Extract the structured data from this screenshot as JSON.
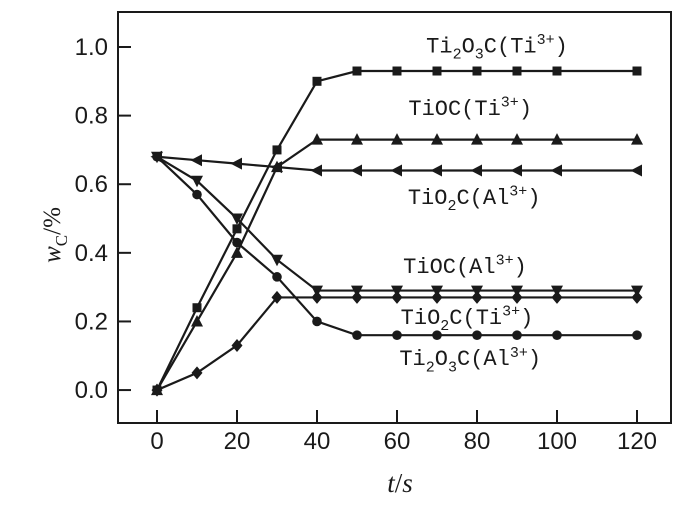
{
  "figure": {
    "background": "#ffffff",
    "ink_color": "#1a1a1a"
  },
  "chart_data": {
    "type": "line",
    "title": "",
    "xlabel": {
      "text": "t/s",
      "segments": [
        {
          "t": "t",
          "s": "it"
        },
        {
          "t": "/",
          "s": "n"
        },
        {
          "t": "s",
          "s": "it"
        }
      ]
    },
    "ylabel": {
      "text": "wC/%",
      "segments": [
        {
          "t": "w",
          "s": "it"
        },
        {
          "t": "C",
          "s": "sub"
        },
        {
          "t": "/%",
          "s": "n"
        }
      ]
    },
    "x": [
      0,
      10,
      20,
      30,
      40,
      50,
      60,
      70,
      80,
      90,
      100,
      120
    ],
    "xlim": [
      -9.75,
      128.5
    ],
    "ylim": [
      -0.096,
      1.102
    ],
    "xticks": {
      "values": [
        0,
        20,
        40,
        60,
        80,
        100,
        120
      ],
      "labels": [
        "0",
        "20",
        "40",
        "60",
        "80",
        "100",
        "120"
      ]
    },
    "yticks": {
      "values": [
        0.0,
        0.2,
        0.4,
        0.6,
        0.8,
        1.0
      ],
      "labels": [
        "0.0",
        "0.2",
        "0.4",
        "0.6",
        "0.8",
        "1.0"
      ]
    },
    "grid": false,
    "legend_position": "inline-labels",
    "line_color": "#1a1a1a",
    "series": [
      {
        "label": "Ti₂O₃C(Ti³⁺)",
        "marker": "square",
        "values": [
          0.0,
          0.24,
          0.47,
          0.7,
          0.9,
          0.93,
          0.93,
          0.93,
          0.93,
          0.93,
          0.93,
          0.93
        ],
        "label_pos": {
          "x": 85,
          "y": 1.005
        },
        "label_segments": [
          {
            "t": "Ti",
            "s": "n"
          },
          {
            "t": "2",
            "s": "sub"
          },
          {
            "t": "O",
            "s": "n"
          },
          {
            "t": "3",
            "s": "sub"
          },
          {
            "t": "C(Ti",
            "s": "n"
          },
          {
            "t": "3+",
            "s": "sup"
          },
          {
            "t": ")",
            "s": "n"
          }
        ]
      },
      {
        "label": "TiOC(Ti³⁺)",
        "marker": "triangle-up",
        "values": [
          0.0,
          0.2,
          0.4,
          0.65,
          0.73,
          0.73,
          0.73,
          0.73,
          0.73,
          0.73,
          0.73,
          0.73
        ],
        "label_pos": {
          "x": 78.3,
          "y": 0.822
        },
        "label_segments": [
          {
            "t": "TiOC(Ti",
            "s": "n"
          },
          {
            "t": "3+",
            "s": "sup"
          },
          {
            "t": ")",
            "s": "n"
          }
        ]
      },
      {
        "label": "TiO₂C(Al³⁺)",
        "marker": "triangle-left",
        "values": [
          0.68,
          0.67,
          0.66,
          0.65,
          0.64,
          0.64,
          0.64,
          0.64,
          0.64,
          0.64,
          0.64,
          0.64
        ],
        "label_pos": {
          "x": 79.3,
          "y": 0.563
        },
        "label_segments": [
          {
            "t": "TiO",
            "s": "n"
          },
          {
            "t": "2",
            "s": "sub"
          },
          {
            "t": "C(Al",
            "s": "n"
          },
          {
            "t": "3+",
            "s": "sup"
          },
          {
            "t": ")",
            "s": "n"
          }
        ]
      },
      {
        "label": "TiOC(Al³⁺)",
        "marker": "triangle-down",
        "values": [
          0.68,
          0.61,
          0.5,
          0.38,
          0.29,
          0.29,
          0.29,
          0.29,
          0.29,
          0.29,
          0.29,
          0.29
        ],
        "label_pos": {
          "x": 77,
          "y": 0.362
        },
        "label_segments": [
          {
            "t": "TiOC(Al",
            "s": "n"
          },
          {
            "t": "3+",
            "s": "sup"
          },
          {
            "t": ")",
            "s": "n"
          }
        ]
      },
      {
        "label": "TiO₂C(Ti³⁺)",
        "marker": "diamond",
        "values": [
          0.0,
          0.05,
          0.13,
          0.27,
          0.27,
          0.27,
          0.27,
          0.27,
          0.27,
          0.27,
          0.27,
          0.27
        ],
        "label_pos": {
          "x": 77.5,
          "y": 0.213
        },
        "label_segments": [
          {
            "t": "TiO",
            "s": "n"
          },
          {
            "t": "2",
            "s": "sub"
          },
          {
            "t": "C(Ti",
            "s": "n"
          },
          {
            "t": "3+",
            "s": "sup"
          },
          {
            "t": ")",
            "s": "n"
          }
        ]
      },
      {
        "label": "Ti₂O₃C(Al³⁺)",
        "marker": "circle",
        "values": [
          0.68,
          0.57,
          0.43,
          0.33,
          0.2,
          0.16,
          0.16,
          0.16,
          0.16,
          0.16,
          0.16,
          0.16
        ],
        "label_pos": {
          "x": 78.3,
          "y": 0.093
        },
        "label_segments": [
          {
            "t": "Ti",
            "s": "n"
          },
          {
            "t": "2",
            "s": "sub"
          },
          {
            "t": "O",
            "s": "n"
          },
          {
            "t": "3",
            "s": "sub"
          },
          {
            "t": "C(Al",
            "s": "n"
          },
          {
            "t": "3+",
            "s": "sup"
          },
          {
            "t": ")",
            "s": "n"
          }
        ]
      }
    ]
  }
}
